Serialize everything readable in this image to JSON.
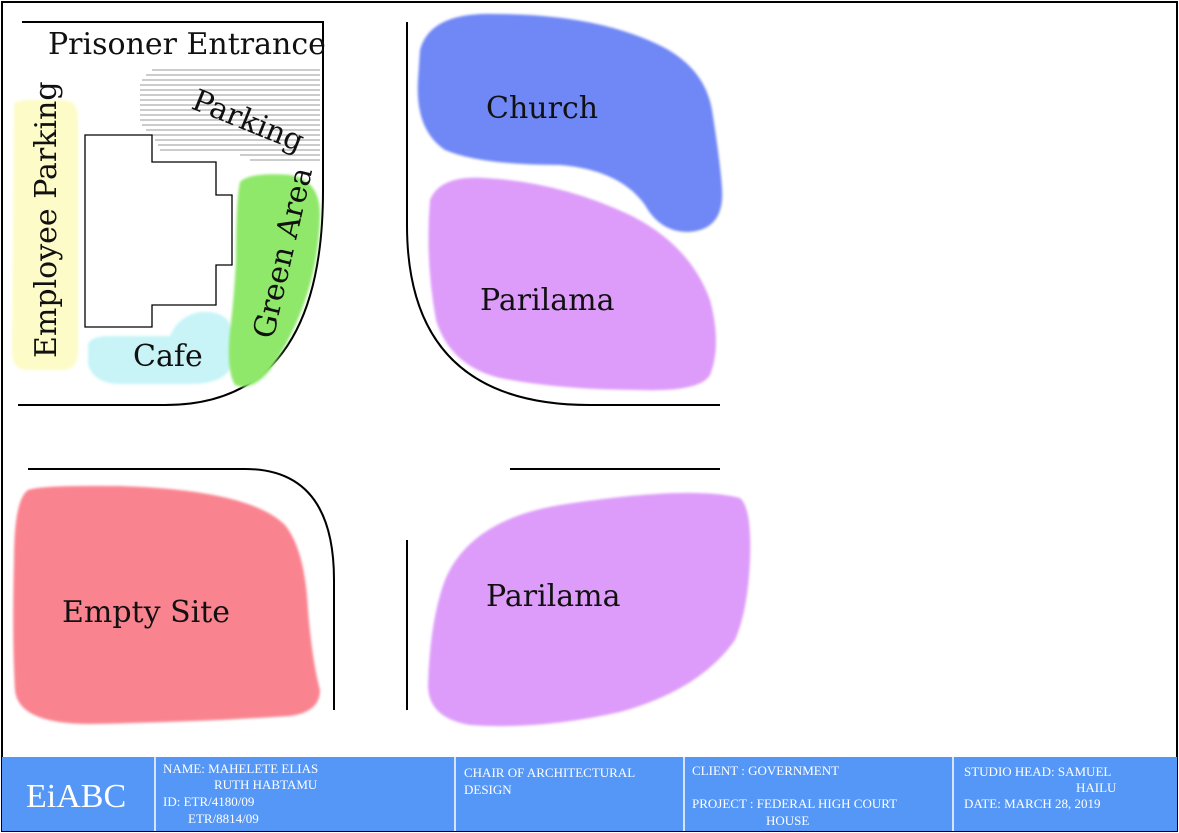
{
  "site": {
    "prisoner_entrance": "Prisoner Entrance",
    "parking": "Parking",
    "employee_parking": "Employee Parking",
    "green_area": "Green Area",
    "cafe": "Cafe",
    "church": "Church",
    "parilama_top": "Parilama",
    "parilama_bottom": "Parilama",
    "empty_site": "Empty Site"
  },
  "colors": {
    "employee_parking": "#fdfcc8",
    "cafe": "#c8f4f8",
    "green_area": "#8fe86a",
    "church": "#7087f6",
    "parilama": "#dd9cf9",
    "empty_site": "#fa8390",
    "title_block": "#5597f7",
    "parking_hatch": "#9a9a9a"
  },
  "title_block": {
    "logo": "EiABC",
    "name_line1": "NAME: MAHELETE ELIAS",
    "name_line2": "RUTH HABTAMU",
    "id_line1": "ID: ETR/4180/09",
    "id_line2": "ETR/8814/09",
    "chair_line1": "CHAIR OF ARCHITECTURAL",
    "chair_line2": "DESIGN",
    "client": "CLIENT : GOVERNMENT",
    "project_line1": "PROJECT : FEDERAL HIGH COURT",
    "project_line2": "HOUSE",
    "studio_head_line1": "STUDIO HEAD: SAMUEL",
    "studio_head_line2": "HAILU",
    "date": "DATE: MARCH 28, 2019"
  }
}
